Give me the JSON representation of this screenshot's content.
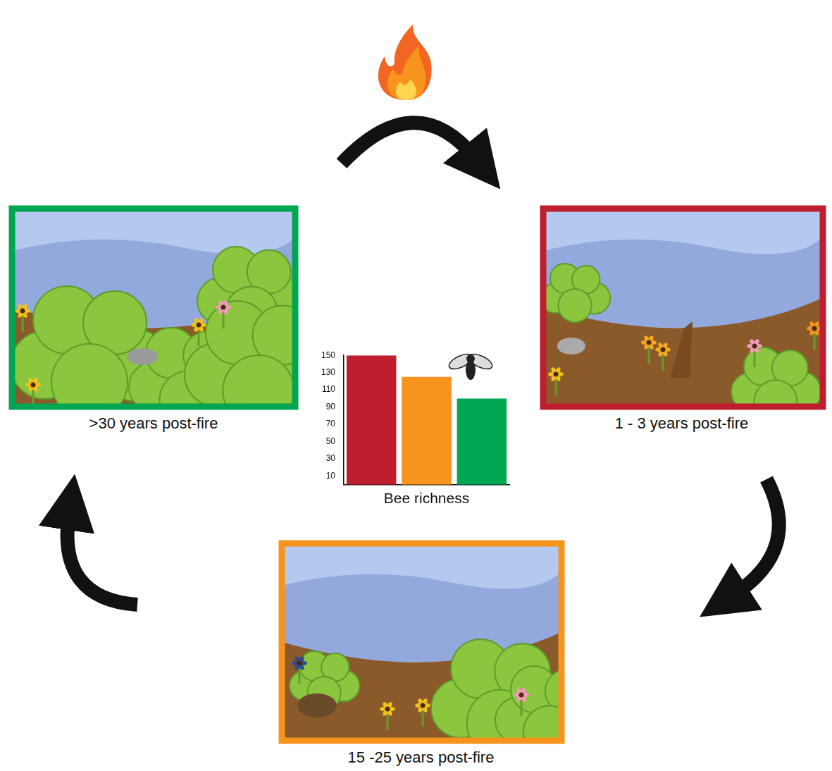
{
  "panels": [
    {
      "label": ">30 years post-fire",
      "color": "#00a651"
    },
    {
      "label": "1 - 3 years post-fire",
      "color": "#be1e2d"
    },
    {
      "label": "15 -25 years post-fire",
      "color": "#f7941d"
    }
  ],
  "chart_data": {
    "type": "bar",
    "xlabel": "Bee richness",
    "categories": [
      null,
      null,
      null
    ],
    "values": [
      150,
      125,
      100
    ],
    "colors": [
      "#be1e2d",
      "#f7941d",
      "#00a651"
    ],
    "ylim": [
      0,
      150
    ],
    "yticks": [
      10,
      30,
      50,
      70,
      90,
      110,
      130,
      150
    ],
    "grid": false,
    "tick_labels": "y"
  }
}
